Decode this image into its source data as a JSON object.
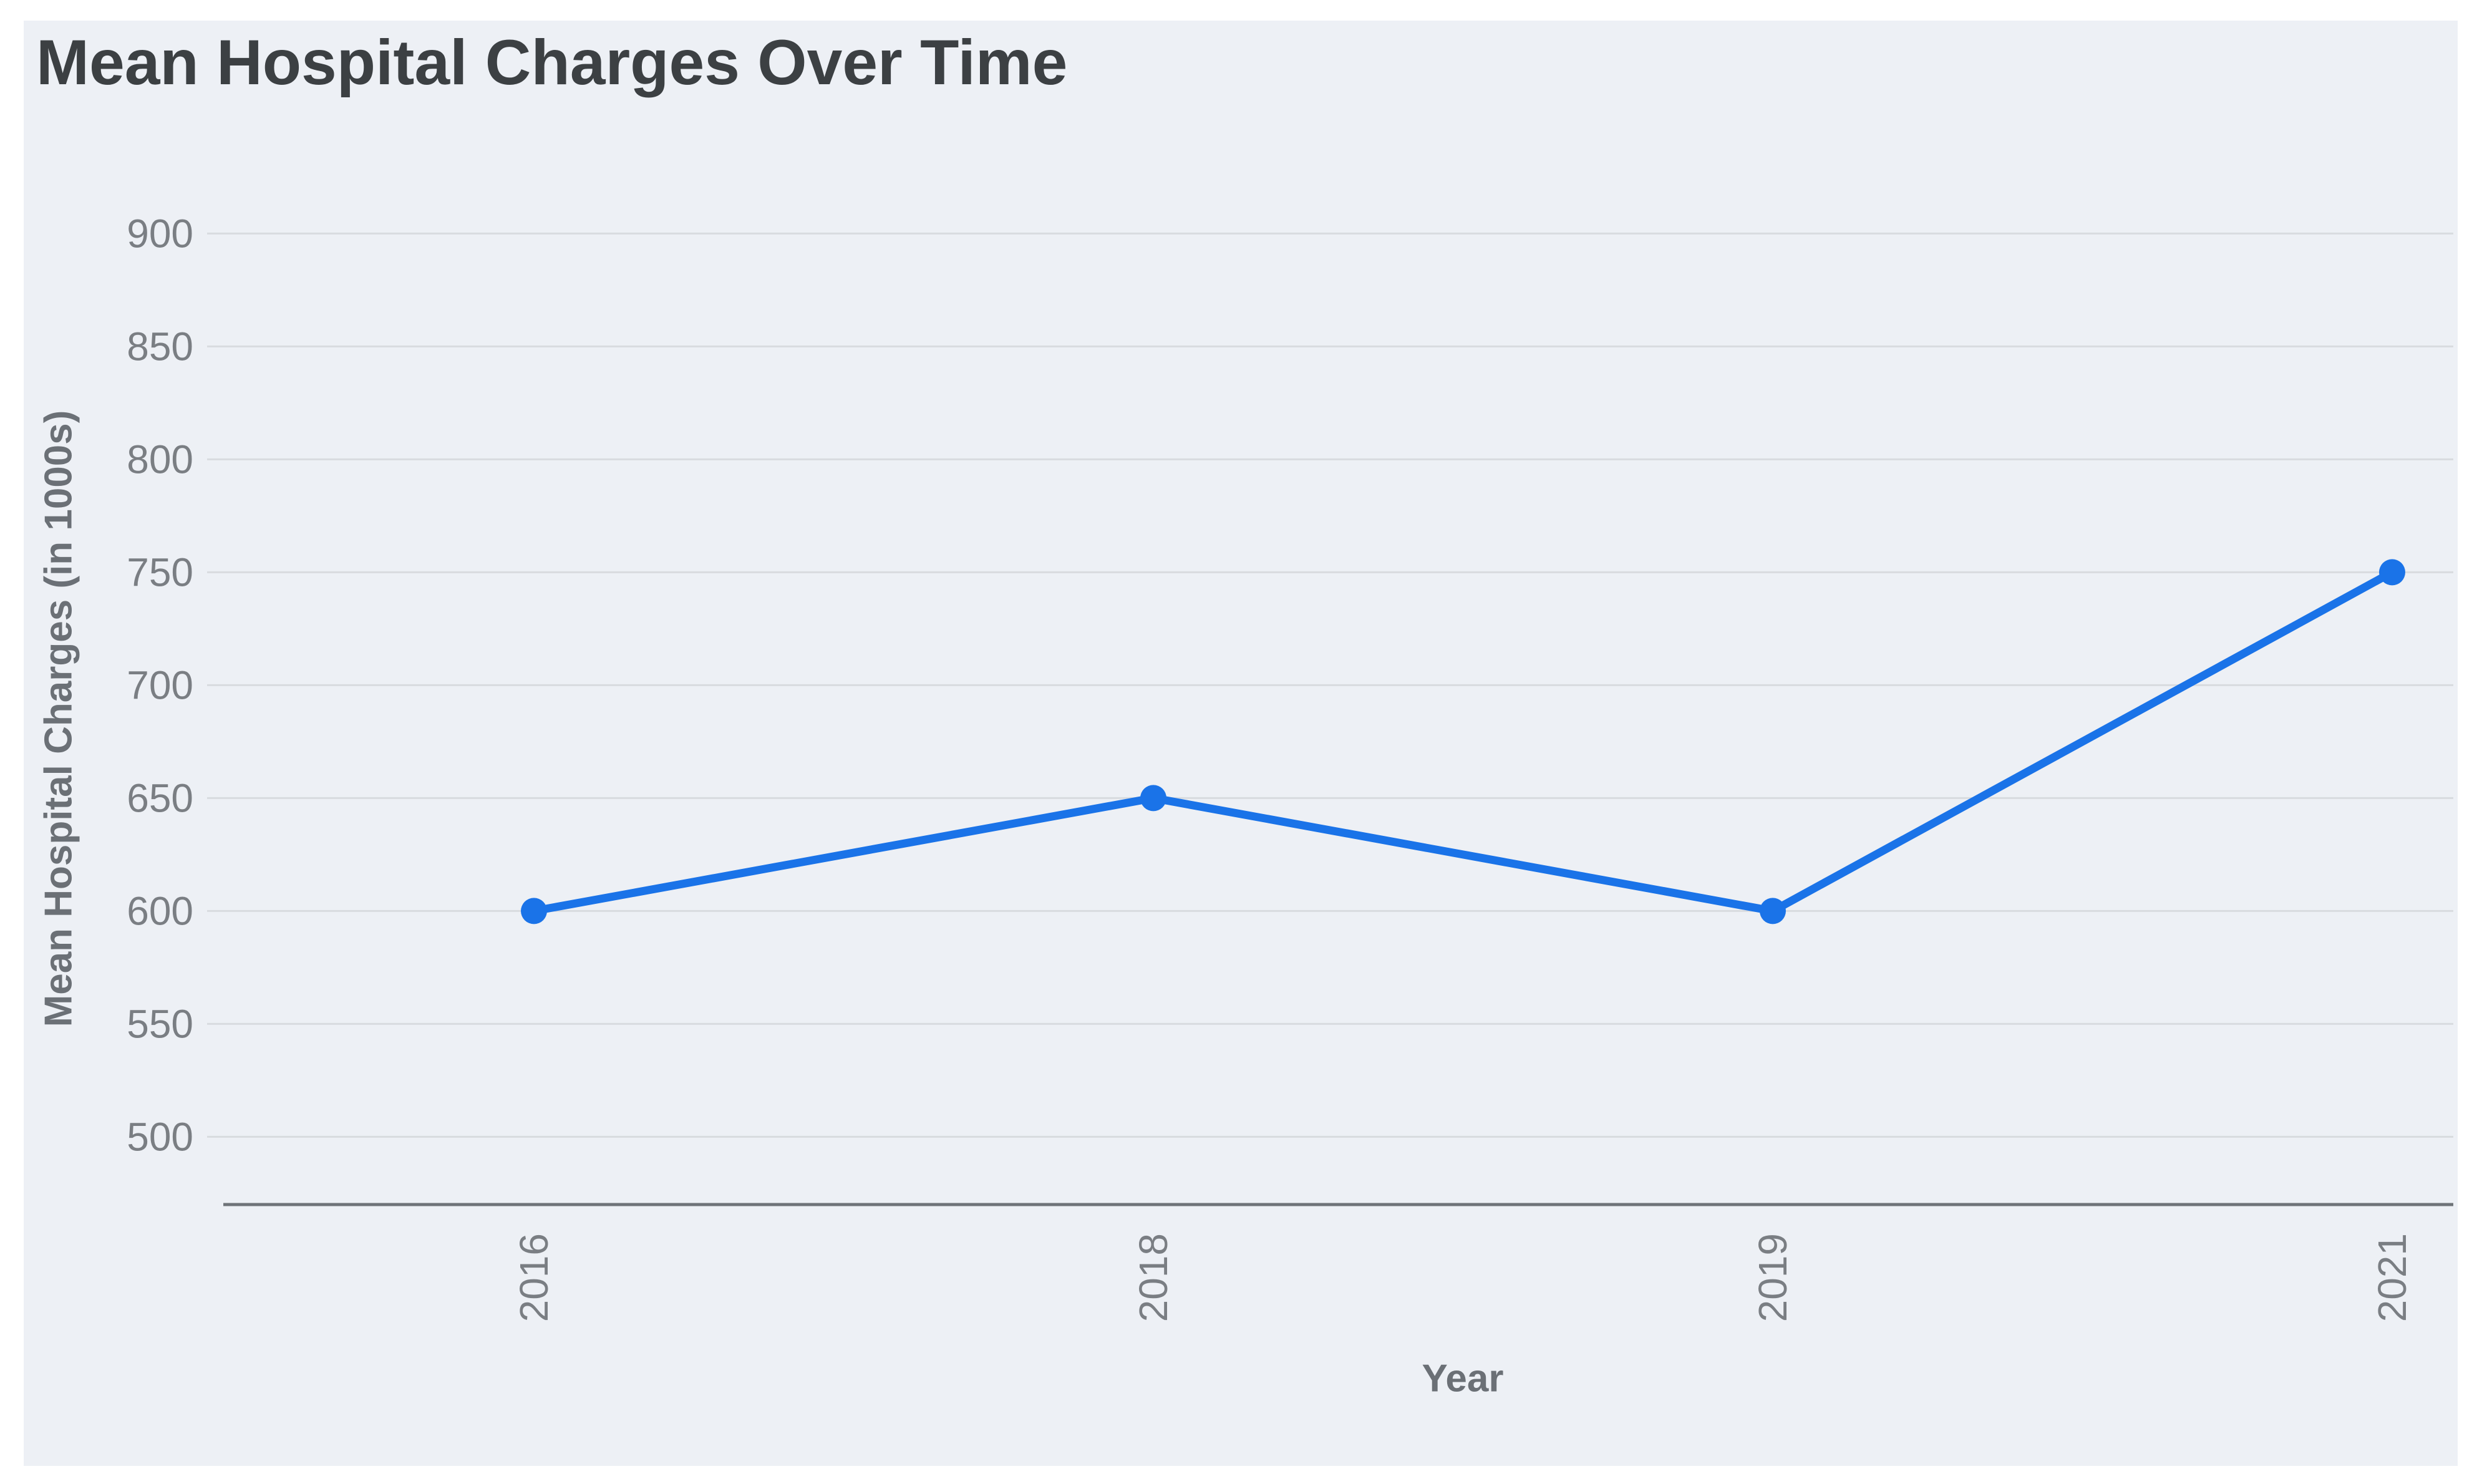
{
  "chart_data": {
    "type": "line",
    "title": "Mean Hospital Charges Over Time",
    "xlabel": "Year",
    "ylabel": "Mean Hospital Charges (in 1000s)",
    "categories": [
      "2016",
      "2018",
      "2019",
      "2021"
    ],
    "values": [
      600,
      650,
      600,
      750
    ],
    "yticks": [
      500,
      550,
      600,
      650,
      700,
      750,
      800,
      850,
      900
    ],
    "ylim": [
      470,
      930
    ],
    "grid": "horizontal-only",
    "legend": "none",
    "marker": "circle",
    "x_tick_rotation_deg": 90
  },
  "colors": {
    "accent_line": "#1a73e8",
    "panel_bg": "#edf0f5",
    "grid_line": "#d8dbdf",
    "axis_line": "#6e7378",
    "title_text": "#3c4043",
    "tick_text": "#7a7e83",
    "axis_title_text": "#6b7076"
  }
}
